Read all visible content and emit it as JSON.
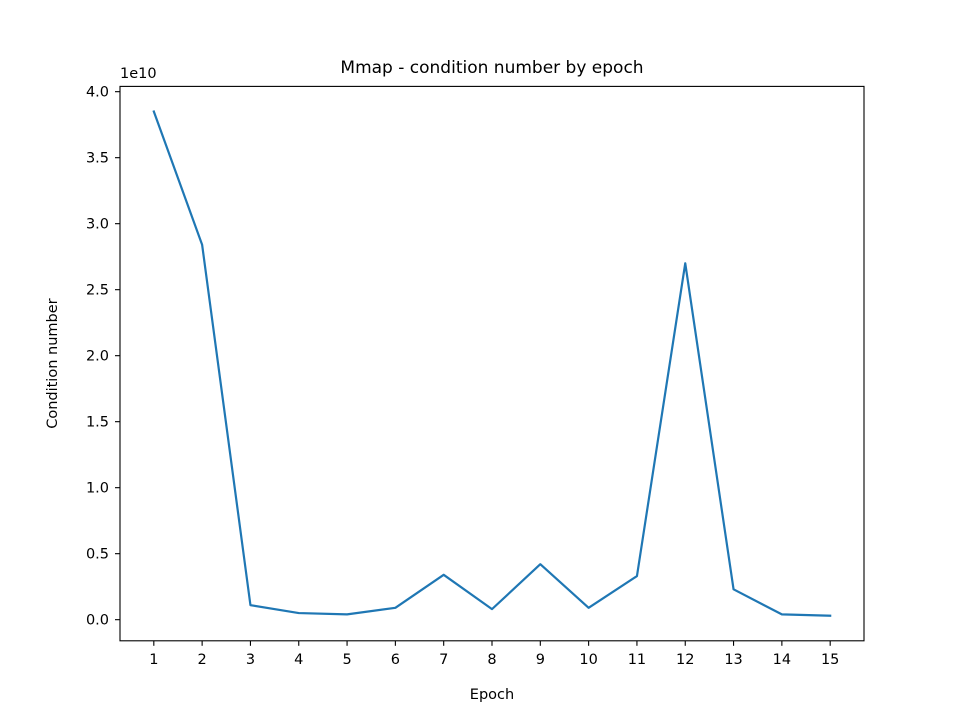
{
  "chart_data": {
    "type": "line",
    "title": "Mmap - condition number by epoch",
    "xlabel": "Epoch",
    "ylabel": "Condition number",
    "y_offset_label": "1e10",
    "y_scale_factor": 10000000000,
    "x": [
      1,
      2,
      3,
      4,
      5,
      6,
      7,
      8,
      9,
      10,
      11,
      12,
      13,
      14,
      15
    ],
    "x_tick_labels": [
      "1",
      "2",
      "3",
      "4",
      "5",
      "6",
      "7",
      "8",
      "9",
      "10",
      "11",
      "12",
      "13",
      "14",
      "15"
    ],
    "y_ticks": [
      0.0,
      0.5,
      1.0,
      1.5,
      2.0,
      2.5,
      3.0,
      3.5,
      4.0
    ],
    "y_tick_labels": [
      "0.0",
      "0.5",
      "1.0",
      "1.5",
      "2.0",
      "2.5",
      "3.0",
      "3.5",
      "4.0"
    ],
    "xlim": [
      0.3,
      15.7
    ],
    "ylim": [
      -0.16,
      4.04
    ],
    "grid": false,
    "legend": "none",
    "series": [
      {
        "color": "#1f77b4",
        "values": [
          3.85,
          2.84,
          0.11,
          0.05,
          0.04,
          0.09,
          0.34,
          0.08,
          0.42,
          0.09,
          0.33,
          2.7,
          0.23,
          0.04,
          0.03
        ]
      }
    ]
  }
}
